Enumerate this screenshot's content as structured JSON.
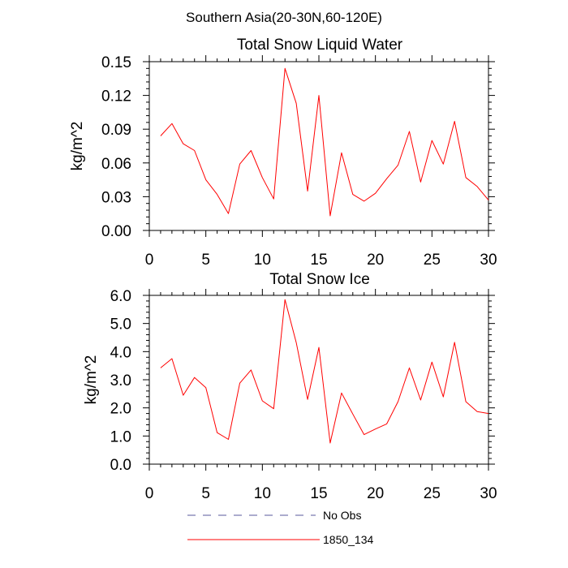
{
  "figure_title": "Southern Asia(20-30N,60-120E)",
  "legend": {
    "placement": "bottom",
    "items": [
      {
        "label": "No Obs",
        "color": "#5a5a9e",
        "dash": true
      },
      {
        "label": "1850_134",
        "color": "#ff0000",
        "dash": false
      }
    ]
  },
  "chart_data": [
    {
      "type": "line",
      "title": "Total Snow Liquid Water",
      "xlabel": "",
      "ylabel": "kg/m^2",
      "xlim": [
        0,
        30
      ],
      "ylim": [
        0,
        0.15
      ],
      "xticks": [
        0,
        5,
        10,
        15,
        20,
        25,
        30
      ],
      "xtick_labels": [
        "0",
        "5",
        "10",
        "15",
        "20",
        "25",
        "30"
      ],
      "yticks": [
        0,
        0.03,
        0.06,
        0.09,
        0.12,
        0.15
      ],
      "ytick_labels": [
        "0.00",
        "0.03",
        "0.06",
        "0.09",
        "0.12",
        "0.15"
      ],
      "grid": false,
      "series": [
        {
          "name": "1850_134",
          "color": "#ff0000",
          "x": [
            1,
            2,
            3,
            4,
            5,
            6,
            7,
            8,
            9,
            10,
            11,
            12,
            13,
            14,
            15,
            16,
            17,
            18,
            19,
            20,
            21,
            22,
            23,
            24,
            25,
            26,
            27,
            28,
            29,
            30
          ],
          "y": [
            0.084,
            0.095,
            0.077,
            0.071,
            0.045,
            0.032,
            0.015,
            0.059,
            0.071,
            0.047,
            0.028,
            0.144,
            0.113,
            0.035,
            0.12,
            0.013,
            0.069,
            0.032,
            0.026,
            0.033,
            0.046,
            0.058,
            0.088,
            0.043,
            0.08,
            0.059,
            0.097,
            0.047,
            0.039,
            0.027
          ]
        }
      ]
    },
    {
      "type": "line",
      "title": "Total Snow Ice",
      "xlabel": "",
      "ylabel": "kg/m^2",
      "xlim": [
        0,
        30
      ],
      "ylim": [
        0,
        6.0
      ],
      "xticks": [
        0,
        5,
        10,
        15,
        20,
        25,
        30
      ],
      "xtick_labels": [
        "0",
        "5",
        "10",
        "15",
        "20",
        "25",
        "30"
      ],
      "yticks": [
        0,
        1,
        2,
        3,
        4,
        5,
        6
      ],
      "ytick_labels": [
        "0.0",
        "1.0",
        "2.0",
        "3.0",
        "4.0",
        "5.0",
        "6.0"
      ],
      "grid": false,
      "series": [
        {
          "name": "1850_134",
          "color": "#ff0000",
          "x": [
            1,
            2,
            3,
            4,
            5,
            6,
            7,
            8,
            9,
            10,
            11,
            12,
            13,
            14,
            15,
            16,
            17,
            18,
            19,
            20,
            21,
            22,
            23,
            24,
            25,
            26,
            27,
            28,
            29,
            30
          ],
          "y": [
            3.42,
            3.75,
            2.45,
            3.08,
            2.72,
            1.12,
            0.88,
            2.88,
            3.35,
            2.25,
            1.97,
            5.85,
            4.32,
            2.3,
            4.15,
            0.75,
            2.53,
            1.78,
            1.05,
            1.25,
            1.43,
            2.22,
            3.42,
            2.28,
            3.63,
            2.39,
            4.33,
            2.22,
            1.87,
            1.8
          ]
        }
      ]
    }
  ]
}
